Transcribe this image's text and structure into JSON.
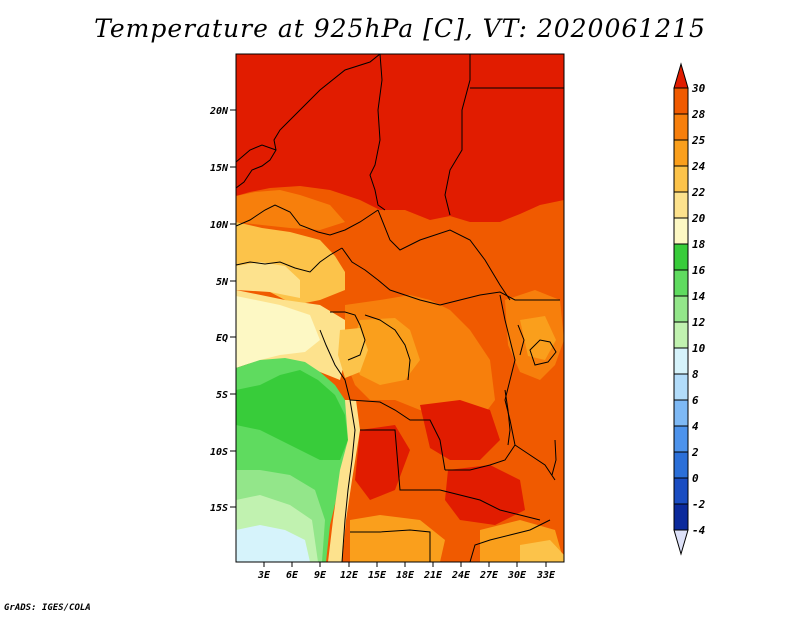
{
  "title": "Temperature at 925hPa [C], VT: 2020061215",
  "footer": "GrADS: IGES/COLA",
  "map": {
    "lat_labels": [
      "20N",
      "15N",
      "10N",
      "5N",
      "EQ",
      "5S",
      "10S",
      "15S"
    ],
    "lon_labels": [
      "3E",
      "6E",
      "9E",
      "12E",
      "15E",
      "18E",
      "21E",
      "24E",
      "27E",
      "30E",
      "33E"
    ]
  },
  "colorbar": {
    "levels": [
      "30",
      "28",
      "25",
      "24",
      "22",
      "20",
      "18",
      "16",
      "14",
      "12",
      "10",
      "8",
      "6",
      "4",
      "2",
      "0",
      "-2",
      "-4"
    ],
    "colors": [
      "#e11c00",
      "#f05a00",
      "#f77f0c",
      "#fa9f1c",
      "#fcc34a",
      "#fde28d",
      "#fdf8c4",
      "#38cc3a",
      "#5fdb5f",
      "#93e68a",
      "#c1f2b0",
      "#d6f3fb",
      "#b2dcfa",
      "#7eb9f5",
      "#4d93ec",
      "#2b6fd8",
      "#1a4dc2",
      "#0b2a9c",
      "#09126a"
    ],
    "top_color": "#e11c00",
    "bottom_color": "#dde1f8"
  }
}
